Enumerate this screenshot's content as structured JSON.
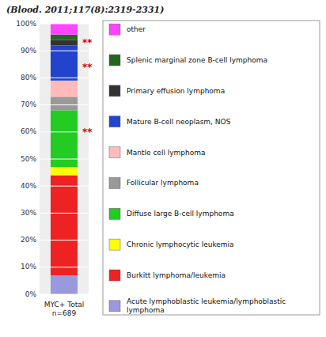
{
  "chart_data": {
    "type": "bar",
    "stacked": true,
    "title": "(Blood. 2011;117(8):2319-2331)",
    "x_label": "MYC+ Total\nn=689",
    "categories": [
      null
    ],
    "series": [
      {
        "name": "Acute lymphoblastic leukemia/lymphoblastic\nlymphoma",
        "color": "#9999dd",
        "values": [
          7.0
        ]
      },
      {
        "name": "Burkitt lymphoma/leukemia",
        "color": "#ee2222",
        "values": [
          37.0
        ]
      },
      {
        "name": "Chronic lymphocytic leukemia",
        "color": "#ffff00",
        "values": [
          3.0
        ]
      },
      {
        "name": "Diffuse large B-cell lymphoma",
        "color": "#22cc22",
        "values": [
          21.0
        ]
      },
      {
        "name": "Follicular lymphoma",
        "color": "#999999",
        "values": [
          5.0
        ]
      },
      {
        "name": "Mantle cell lymphoma",
        "color": "#ffbbbb",
        "values": [
          6.0
        ]
      },
      {
        "name": "Mature B-cell neoplasm, NOS",
        "color": "#2244cc",
        "values": [
          13.0
        ]
      },
      {
        "name": "Primary effusion lymphoma",
        "color": "#333333",
        "values": [
          2.0
        ]
      },
      {
        "name": "Splenic marginal zone B-cell lymphoma",
        "color": "#226622",
        "values": [
          2.0
        ]
      },
      {
        "name": "other",
        "color": "#ff44ff",
        "values": [
          4.0
        ]
      }
    ],
    "ylim": [
      0,
      100
    ],
    "yticks": [
      {
        "value": 0,
        "label": "0%"
      },
      {
        "value": 10,
        "label": "10%"
      },
      {
        "value": 20,
        "label": "20%"
      },
      {
        "value": 30,
        "label": "30%"
      },
      {
        "value": 40,
        "label": "40%"
      },
      {
        "value": 50,
        "label": "50%"
      },
      {
        "value": 60,
        "label": "60%"
      },
      {
        "value": 70,
        "label": "70%"
      },
      {
        "value": 80,
        "label": "80%"
      },
      {
        "value": 90,
        "label": "90%"
      },
      {
        "value": 100,
        "label": "100%"
      }
    ],
    "grid": true,
    "tick_labels": "y",
    "annotations": [
      {
        "text": "**",
        "y": 93.0,
        "color": "#cc0000"
      },
      {
        "text": "**",
        "y": 84.0,
        "color": "#cc0000"
      },
      {
        "text": "**",
        "y": 60.0,
        "color": "#cc0000"
      }
    ]
  }
}
